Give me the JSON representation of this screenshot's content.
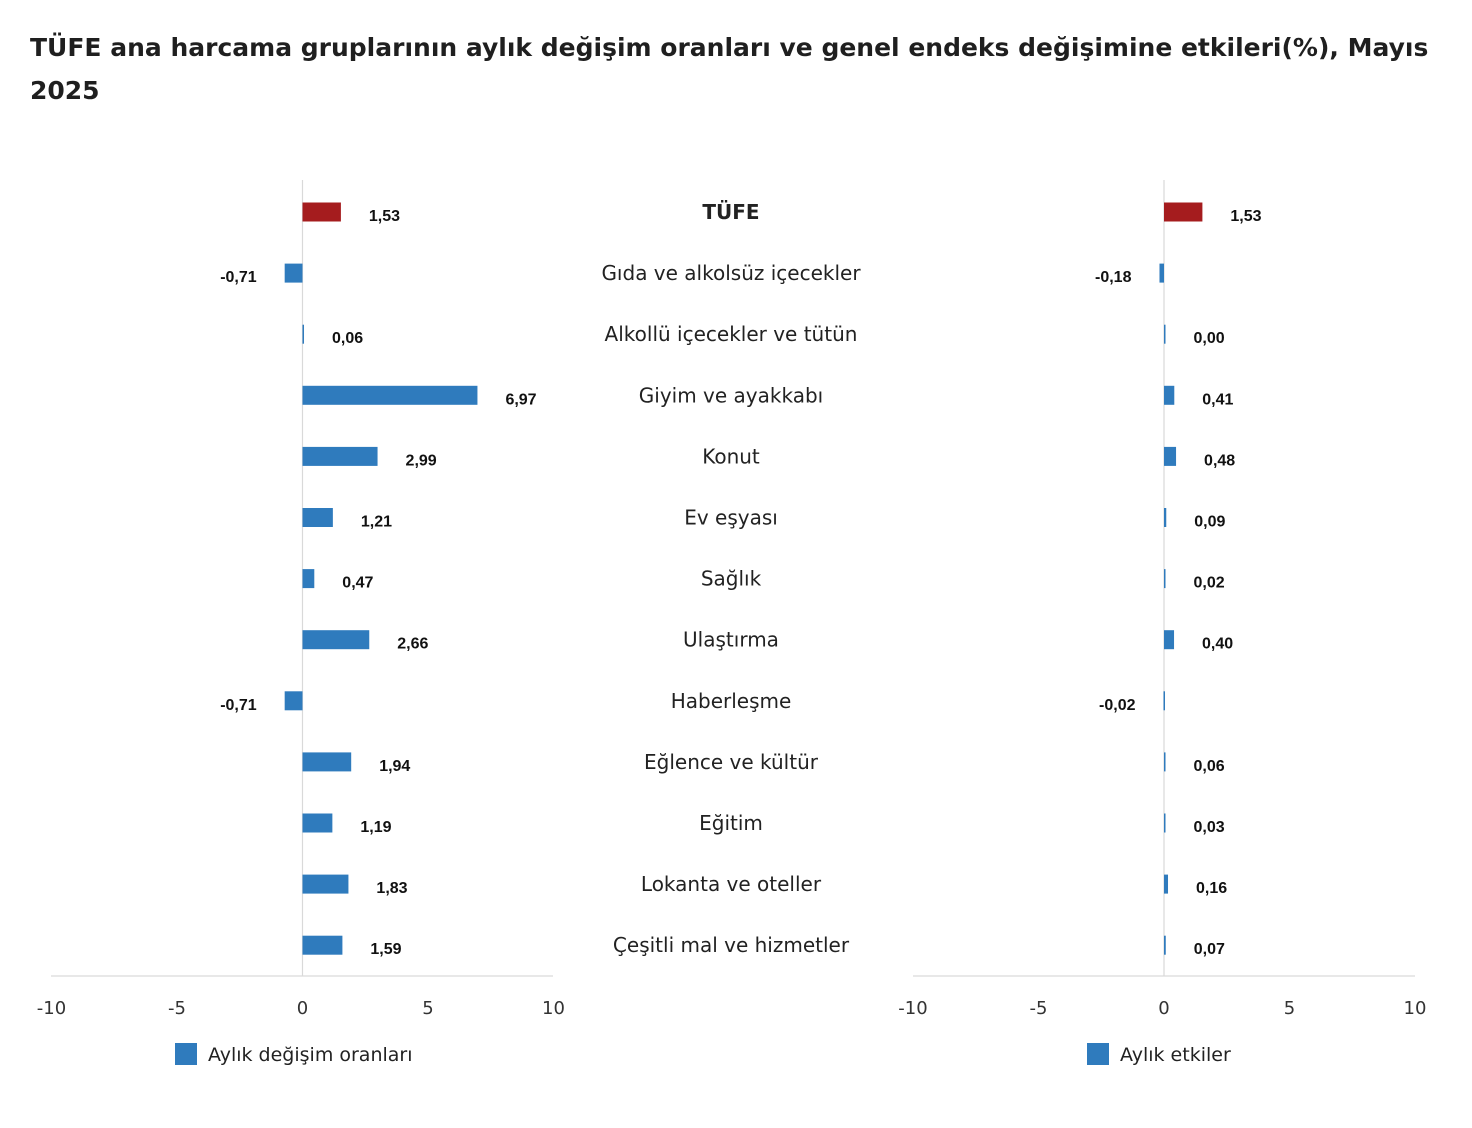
{
  "title": "TÜFE ana harcama gruplarının aylık değişim oranları ve genel endeks değişimine etkileri(%), Mayıs 2025",
  "colors": {
    "series": "#2f7bbd",
    "highlight": "#a51c1e",
    "axis": "#d9d9d9"
  },
  "chart_data": [
    {
      "type": "bar",
      "orientation": "horizontal",
      "series": [
        {
          "name": "Aylık değişim oranları",
          "values": [
            1.53,
            -0.71,
            0.06,
            6.97,
            2.99,
            1.21,
            0.47,
            2.66,
            -0.71,
            1.94,
            1.19,
            1.83,
            1.59
          ],
          "labels": [
            "1,53",
            "-0,71",
            "0,06",
            "6,97",
            "2,99",
            "1,21",
            "0,47",
            "2,66",
            "-0,71",
            "1,94",
            "1,19",
            "1,83",
            "1,59"
          ]
        }
      ],
      "xlim": [
        -10,
        10
      ],
      "xticks": [
        "-10",
        "-5",
        "0",
        "5",
        "10"
      ],
      "highlight_index": 0,
      "legend": "bottom"
    },
    {
      "type": "bar",
      "orientation": "horizontal",
      "series": [
        {
          "name": "Aylık etkiler",
          "values": [
            1.53,
            -0.18,
            0.0,
            0.41,
            0.48,
            0.09,
            0.02,
            0.4,
            -0.02,
            0.06,
            0.03,
            0.16,
            0.07
          ],
          "labels": [
            "1,53",
            "-0,18",
            "0,00",
            "0,41",
            "0,48",
            "0,09",
            "0,02",
            "0,40",
            "-0,02",
            "0,06",
            "0,03",
            "0,16",
            "0,07"
          ]
        }
      ],
      "xlim": [
        -10,
        10
      ],
      "xticks": [
        "-10",
        "-5",
        "0",
        "5",
        "10"
      ],
      "highlight_index": 0,
      "legend": "bottom"
    }
  ],
  "categories": [
    "TÜFE",
    "Gıda ve alkolsüz içecekler",
    "Alkollü içecekler ve tütün",
    "Giyim ve ayakkabı",
    "Konut",
    "Ev eşyası",
    "Sağlık",
    "Ulaştırma",
    "Haberleşme",
    "Eğlence ve kültür",
    "Eğitim",
    "Lokanta ve oteller",
    "Çeşitli mal ve hizmetler"
  ]
}
